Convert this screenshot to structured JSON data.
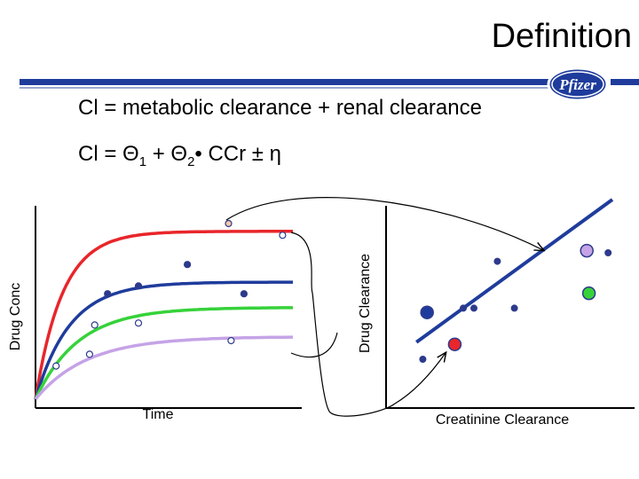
{
  "slide": {
    "title": "Definition",
    "logo_text": "Pfizer",
    "equation1": "Cl = metabolic clearance + renal clearance",
    "equation2": {
      "lhs": "Cl = ",
      "theta": "Θ",
      "sub1": "1",
      "plus": " + ",
      "sub2": "2",
      "rest": "• CCr  ± η"
    }
  },
  "colors": {
    "accent_blue": "#1f3c9c",
    "red": "#e8262b",
    "blue": "#1f3c9c",
    "green": "#36d23a",
    "lavender": "#c5a3e6",
    "dot": "#2d3a8c"
  },
  "chart_data": [
    {
      "type": "line",
      "xlabel": "Time",
      "ylabel": "Drug Conc",
      "xlim": [
        0,
        10
      ],
      "ylim": [
        0,
        10
      ],
      "series": [
        {
          "color": "#e8262b",
          "plateau": 8.6,
          "rate": 0.95
        },
        {
          "color": "#1f3c9c",
          "plateau": 6.0,
          "rate": 0.75
        },
        {
          "color": "#36d23a",
          "plateau": 4.7,
          "rate": 0.6
        },
        {
          "color": "#c5a3e6",
          "plateau": 3.2,
          "rate": 0.5
        }
      ],
      "points": [
        {
          "x": 7.5,
          "y": 9.0,
          "color": "#f5c9a9"
        },
        {
          "x": 9.6,
          "y": 8.4,
          "color": "#ffffff"
        },
        {
          "x": 5.9,
          "y": 6.9,
          "color": "#2d3a8c"
        },
        {
          "x": 4.0,
          "y": 5.8,
          "color": "#2d3a8c"
        },
        {
          "x": 2.8,
          "y": 5.4,
          "color": "#2d3a8c"
        },
        {
          "x": 8.1,
          "y": 5.4,
          "color": "#2d3a8c"
        },
        {
          "x": 2.3,
          "y": 3.8,
          "color": "#ffffff"
        },
        {
          "x": 4.0,
          "y": 3.9,
          "color": "#ffffff"
        },
        {
          "x": 7.6,
          "y": 3.0,
          "color": "#ffffff"
        },
        {
          "x": 2.1,
          "y": 2.3,
          "color": "#ffffff"
        },
        {
          "x": 0.8,
          "y": 1.7,
          "color": "#ffffff"
        }
      ]
    },
    {
      "type": "scatter",
      "xlabel": "Creatinine Clearance",
      "ylabel": "Drug Clearance",
      "xlim": [
        0,
        10
      ],
      "ylim": [
        0,
        10
      ],
      "fit_line": {
        "x": [
          0.8,
          10.0
        ],
        "y": [
          0.8,
          7.5
        ]
      },
      "points": [
        {
          "x": 4.6,
          "y": 4.6,
          "color": "#2d3a8c",
          "size": "small"
        },
        {
          "x": 8.8,
          "y": 5.1,
          "color": "#c5a3e6",
          "size": "large"
        },
        {
          "x": 9.8,
          "y": 5.0,
          "color": "#2d3a8c",
          "size": "small"
        },
        {
          "x": 8.9,
          "y": 3.1,
          "color": "#36d23a",
          "size": "large"
        },
        {
          "x": 1.3,
          "y": 2.2,
          "color": "#1f3c9c",
          "size": "large"
        },
        {
          "x": 3.0,
          "y": 2.4,
          "color": "#2d3a8c",
          "size": "small"
        },
        {
          "x": 3.5,
          "y": 2.4,
          "color": "#2d3a8c",
          "size": "small"
        },
        {
          "x": 5.4,
          "y": 2.4,
          "color": "#2d3a8c",
          "size": "small"
        },
        {
          "x": 2.6,
          "y": 0.7,
          "color": "#e8262b",
          "size": "large"
        },
        {
          "x": 1.1,
          "y": 0.0,
          "color": "#2d3a8c",
          "size": "small"
        }
      ]
    }
  ]
}
